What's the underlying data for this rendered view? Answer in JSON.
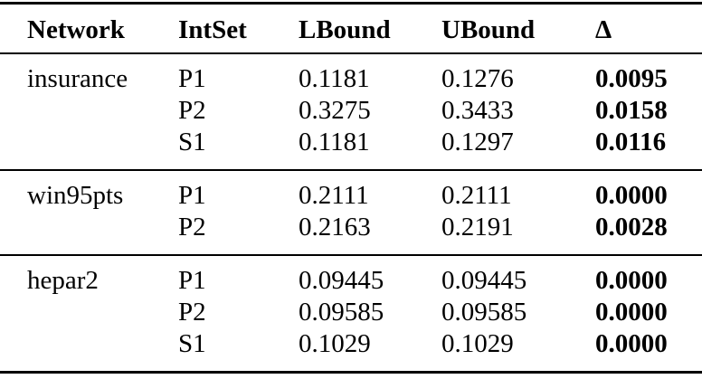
{
  "table": {
    "columns": {
      "network": "Network",
      "intset": "IntSet",
      "lbound": "LBound",
      "ubound": "UBound",
      "delta": "Δ"
    },
    "groups": [
      {
        "network": "insurance",
        "rows": [
          {
            "intset": "P1",
            "lbound": "0.1181",
            "ubound": "0.1276",
            "delta": "0.0095"
          },
          {
            "intset": "P2",
            "lbound": "0.3275",
            "ubound": "0.3433",
            "delta": "0.0158"
          },
          {
            "intset": "S1",
            "lbound": "0.1181",
            "ubound": "0.1297",
            "delta": "0.0116"
          }
        ]
      },
      {
        "network": "win95pts",
        "rows": [
          {
            "intset": "P1",
            "lbound": "0.2111",
            "ubound": "0.2111",
            "delta": "0.0000"
          },
          {
            "intset": "P2",
            "lbound": "0.2163",
            "ubound": "0.2191",
            "delta": "0.0028"
          }
        ]
      },
      {
        "network": "hepar2",
        "rows": [
          {
            "intset": "P1",
            "lbound": "0.09445",
            "ubound": "0.09445",
            "delta": "0.0000"
          },
          {
            "intset": "P2",
            "lbound": "0.09585",
            "ubound": "0.09585",
            "delta": "0.0000"
          },
          {
            "intset": "S1",
            "lbound": "0.1029",
            "ubound": "0.1029",
            "delta": "0.0000"
          }
        ]
      }
    ],
    "colors": {
      "text": "#000000",
      "background": "#ffffff",
      "rule": "#000000"
    }
  }
}
